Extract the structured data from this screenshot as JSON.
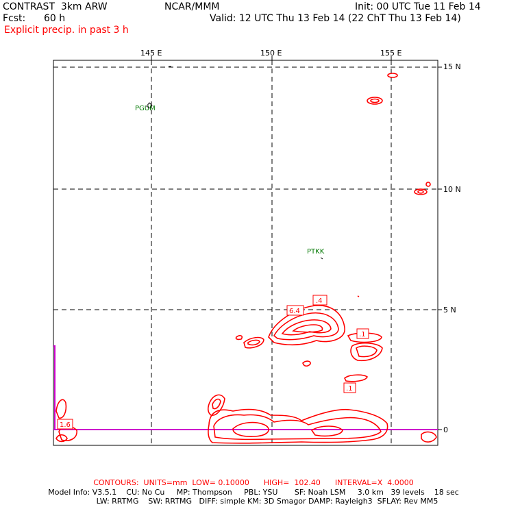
{
  "header": {
    "model": "CONTRAST  3km ARW",
    "org": "NCAR/MMM",
    "init": "Init: 00 UTC Tue 11 Feb 14",
    "fcst_label": "Fcst:",
    "fcst_value": "60 h",
    "valid": "Valid: 12 UTC Thu 13 Feb 14 (22 ChT Thu 13 Feb 14)",
    "field": "Explicit precip. in past 3 h"
  },
  "axes": {
    "lon_labels": [
      "145 E",
      "150 E",
      "155 E"
    ],
    "lat_labels": [
      "15 N",
      "10 N",
      "5 N",
      "0"
    ]
  },
  "stations": [
    "PGUM",
    "PTKK"
  ],
  "contour_labels": [
    "6.4",
    ".4",
    ".1",
    ".1",
    "1.6"
  ],
  "footer": {
    "contours": "CONTOURS:  UNITS=mm  LOW= 0.10000      HIGH=  102.40      INTERVAL=X  4.0000",
    "model_info_1": "Model Info: V3.5.1    CU: No Cu     MP: Thompson     PBL: YSU       SF: Noah LSM     3.0 km   39 levels    18 sec",
    "model_info_2": "LW: RRTMG    SW: RRTMG   DIFF: simple KM: 3D Smagor DAMP: Rayleigh3  SFLAY: Rev MM5"
  },
  "colors": {
    "contour": "#ff0000",
    "station": "#007700",
    "equator_line": "#cc00cc",
    "grid": "#000000"
  }
}
